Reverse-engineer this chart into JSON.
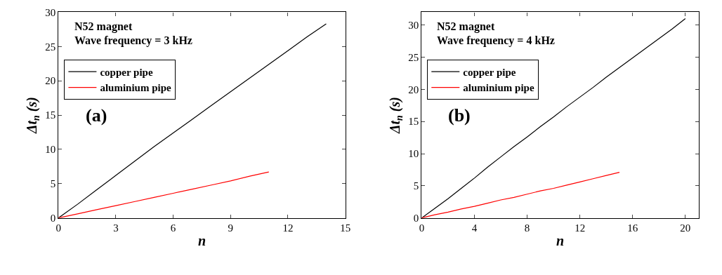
{
  "chart_data": [
    {
      "type": "line",
      "xlabel": "n",
      "ylabel": "Δt$_{n}$ (s)",
      "annotations": [
        "N52 magnet",
        "Wave frequency = 3 kHz",
        "(a)"
      ],
      "xlim": [
        0,
        15
      ],
      "xticks": [
        0,
        3,
        6,
        9,
        12,
        15
      ],
      "ylim": [
        0,
        30
      ],
      "yticks": [
        0,
        5,
        10,
        15,
        20,
        25,
        30
      ],
      "legend": "top left",
      "marker": "none",
      "line_style": "solid",
      "series": [
        {
          "name": "copper pipe",
          "color": "#000000",
          "x": [
            0,
            1,
            2,
            3,
            4,
            5,
            6,
            7,
            8,
            9,
            10,
            11,
            12,
            13,
            14
          ],
          "values": [
            0,
            2.0,
            4.1,
            6.2,
            8.3,
            10.4,
            12.4,
            14.4,
            16.4,
            18.4,
            20.4,
            22.4,
            24.4,
            26.4,
            28.3
          ]
        },
        {
          "name": "aluminium pipe",
          "color": "#ff0000",
          "x": [
            0,
            1,
            2,
            3,
            4,
            5,
            6,
            7,
            8,
            9,
            10,
            11
          ],
          "values": [
            0,
            0.6,
            1.2,
            1.8,
            2.4,
            3.0,
            3.6,
            4.2,
            4.8,
            5.4,
            6.1,
            6.7
          ]
        }
      ]
    },
    {
      "type": "line",
      "xlabel": "n",
      "ylabel": "Δt$_{n}$ (s)",
      "annotations": [
        "N52 magnet",
        "Wave frequency = 4 kHz",
        "(b)"
      ],
      "xlim": [
        0,
        21
      ],
      "xticks": [
        0,
        4,
        8,
        12,
        16,
        20
      ],
      "ylim": [
        0,
        32
      ],
      "yticks": [
        0,
        5,
        10,
        15,
        20,
        25,
        30
      ],
      "legend": "top left",
      "marker": "none",
      "line_style": "solid",
      "series": [
        {
          "name": "copper pipe",
          "color": "#000000",
          "x": [
            0,
            1,
            2,
            3,
            4,
            5,
            6,
            7,
            8,
            9,
            10,
            11,
            12,
            13,
            14,
            15,
            16,
            17,
            18,
            19,
            20
          ],
          "values": [
            0,
            1.5,
            3.0,
            4.6,
            6.2,
            7.9,
            9.5,
            11.1,
            12.6,
            14.2,
            15.7,
            17.3,
            18.8,
            20.3,
            21.9,
            23.4,
            24.9,
            26.4,
            27.9,
            29.4,
            31.0
          ]
        },
        {
          "name": "aluminium pipe",
          "color": "#ff0000",
          "x": [
            0,
            1,
            2,
            3,
            4,
            5,
            6,
            7,
            8,
            9,
            10,
            11,
            12,
            13,
            14,
            15
          ],
          "values": [
            0,
            0.5,
            0.9,
            1.4,
            1.8,
            2.3,
            2.8,
            3.2,
            3.7,
            4.2,
            4.6,
            5.1,
            5.6,
            6.1,
            6.6,
            7.1
          ]
        }
      ]
    }
  ]
}
